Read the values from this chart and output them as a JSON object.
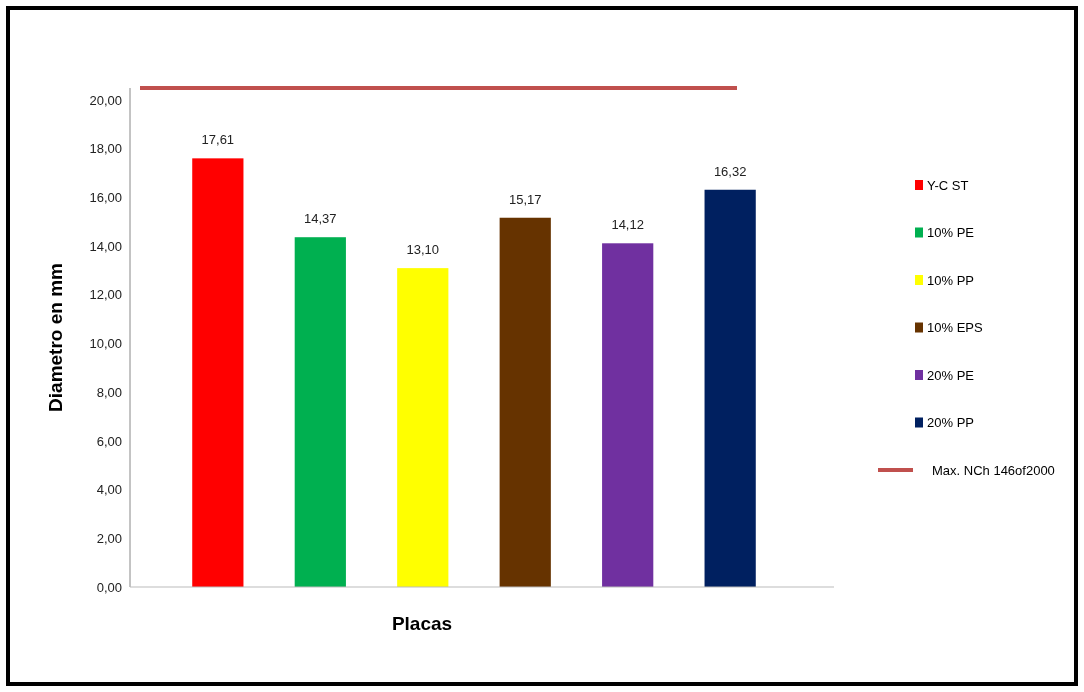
{
  "chart_data": {
    "type": "bar",
    "xlabel": "Placas",
    "ylabel": "Diametro en mm",
    "categories": [
      null,
      null,
      null,
      null,
      null,
      null
    ],
    "series": [
      {
        "name": "Y-C ST",
        "color": "#ff0000",
        "values": [
          17.61,
          null,
          null,
          null,
          null,
          null
        ]
      },
      {
        "name": "10% PE",
        "color": "#00b050",
        "values": [
          null,
          14.37,
          null,
          null,
          null,
          null
        ]
      },
      {
        "name": "10% PP",
        "color": "#ffff00",
        "values": [
          null,
          null,
          13.1,
          null,
          null,
          null
        ]
      },
      {
        "name": "10% EPS",
        "color": "#663300",
        "values": [
          null,
          null,
          null,
          15.17,
          null,
          null
        ]
      },
      {
        "name": "20% PE",
        "color": "#7030a0",
        "values": [
          null,
          null,
          null,
          null,
          14.12,
          null
        ]
      },
      {
        "name": "20% PP",
        "color": "#002060",
        "values": [
          null,
          null,
          null,
          null,
          null,
          16.32
        ]
      }
    ],
    "value_labels": [
      "17,61",
      "14,37",
      "13,10",
      "15,17",
      "14,12",
      "16,32"
    ],
    "ylim": [
      0,
      20.5
    ],
    "yticks": [
      {
        "value": 0,
        "label": "0,00"
      },
      {
        "value": 2,
        "label": "2,00"
      },
      {
        "value": 4,
        "label": "4,00"
      },
      {
        "value": 6,
        "label": "6,00"
      },
      {
        "value": 8,
        "label": "8,00"
      },
      {
        "value": 10,
        "label": "10,00"
      },
      {
        "value": 12,
        "label": "12,00"
      },
      {
        "value": 14,
        "label": "14,00"
      },
      {
        "value": 16,
        "label": "16,00"
      },
      {
        "value": 18,
        "label": "18,00"
      },
      {
        "value": 20,
        "label": "20,00"
      }
    ],
    "ref_lines": [
      {
        "axis": "y",
        "value": 20.5,
        "label": "Max. NCh 146of2000",
        "color": "#c0504d"
      }
    ],
    "grid": false,
    "legend": "right"
  }
}
